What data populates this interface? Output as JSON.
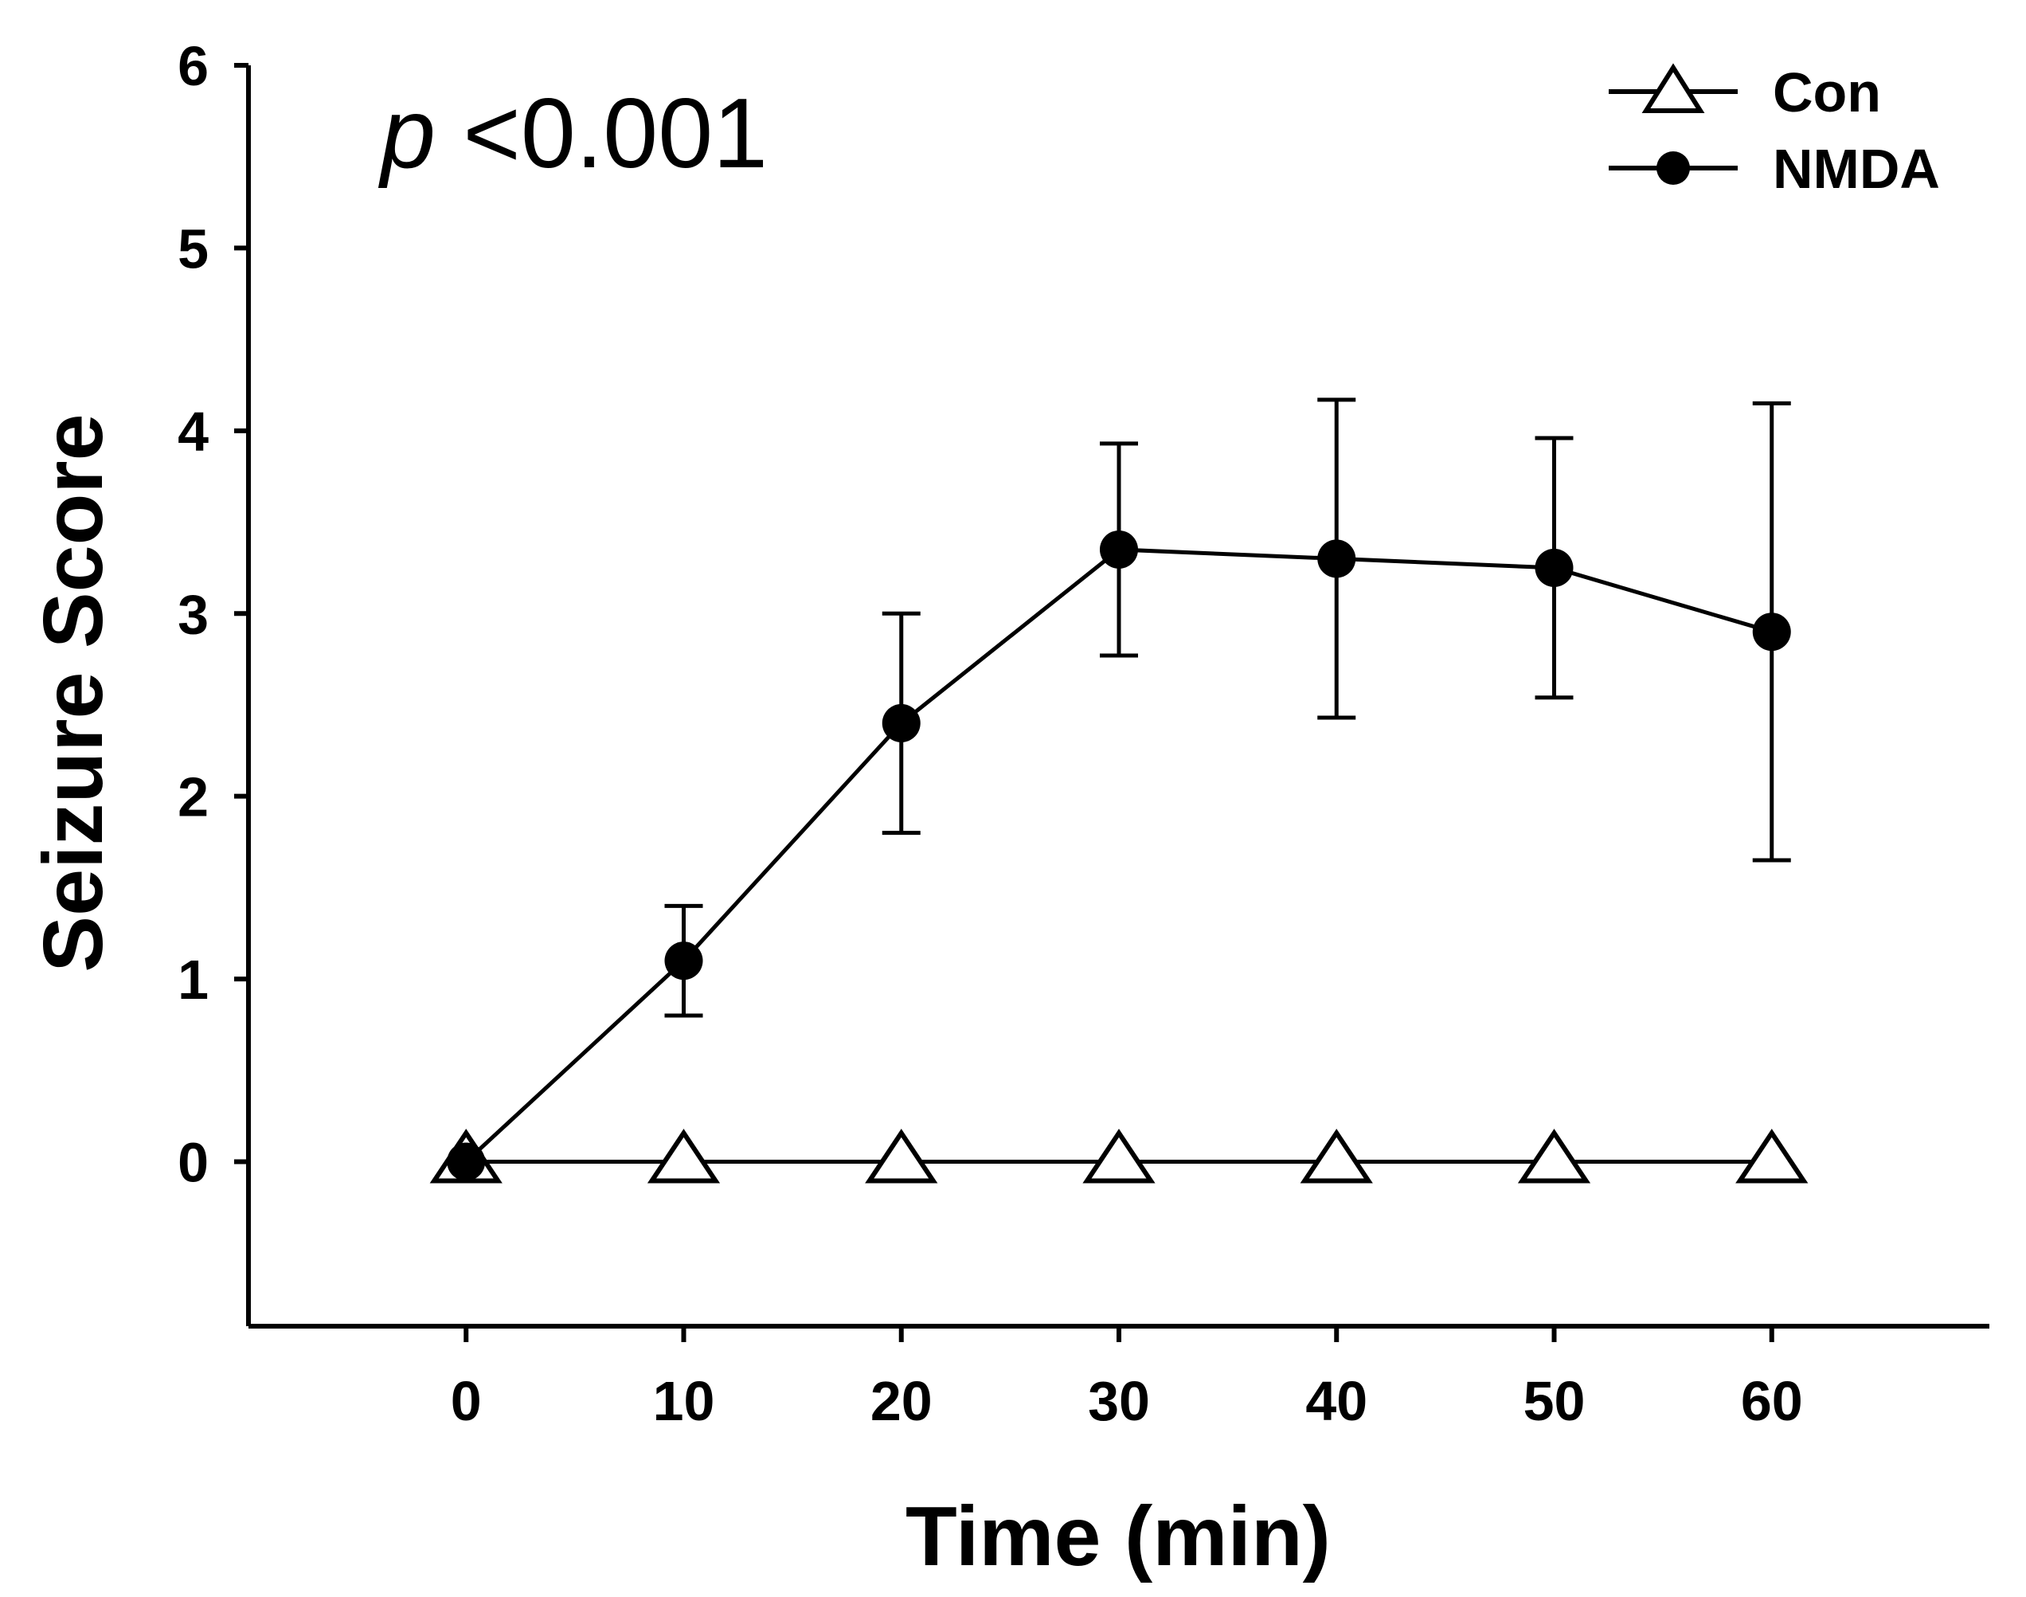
{
  "chart_data": {
    "type": "line",
    "title": "",
    "xlabel": "Time (min)",
    "ylabel": "Seizure Score",
    "x": [
      0,
      10,
      20,
      30,
      40,
      50,
      60
    ],
    "xticks": [
      "0",
      "10",
      "20",
      "30",
      "40",
      "50",
      "60"
    ],
    "yticks": [
      "0",
      "1",
      "2",
      "3",
      "4",
      "5",
      "6"
    ],
    "xlim": [
      -10,
      70
    ],
    "ylim": [
      -0.9,
      6
    ],
    "grid": false,
    "legend_position": "top-right",
    "annotation": {
      "p": "p",
      "text": " <0.001"
    },
    "series": [
      {
        "name": "Con",
        "marker": "open-triangle",
        "color": "#000000",
        "values": [
          0,
          0,
          0,
          0,
          0,
          0,
          0
        ],
        "error": [
          0,
          0,
          0,
          0,
          0,
          0,
          0
        ]
      },
      {
        "name": "NMDA",
        "marker": "filled-circle",
        "color": "#000000",
        "values": [
          0,
          1.1,
          2.4,
          3.35,
          3.3,
          3.25,
          2.9
        ],
        "error": [
          0,
          0.3,
          0.6,
          0.58,
          0.87,
          0.71,
          1.25
        ]
      }
    ]
  }
}
